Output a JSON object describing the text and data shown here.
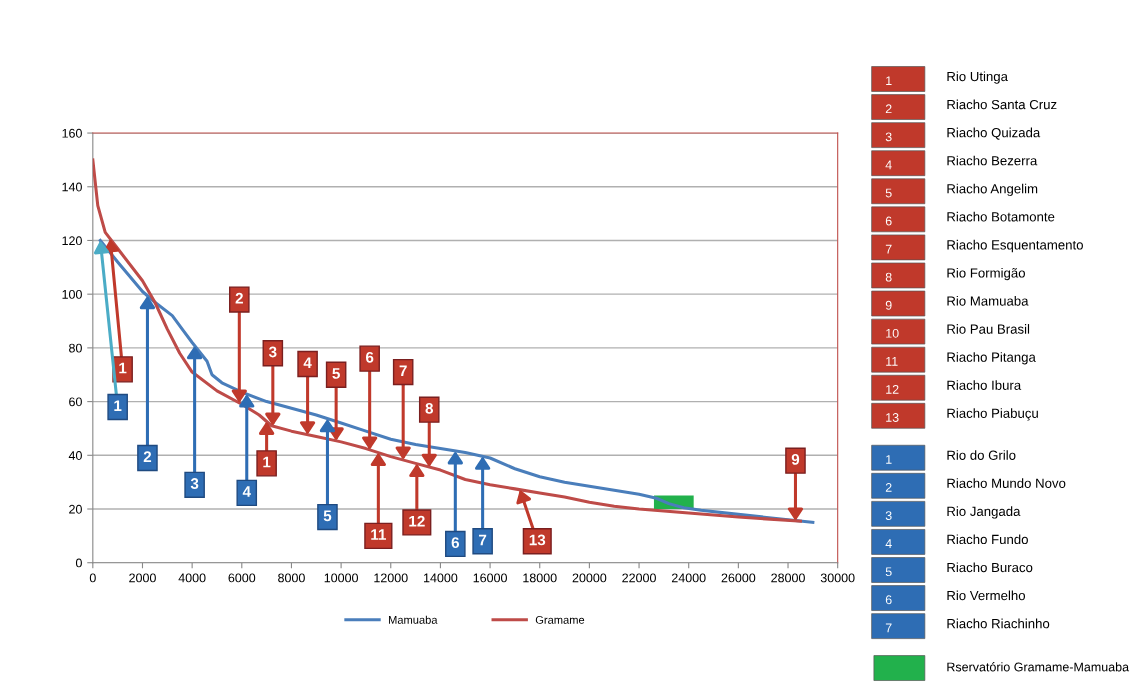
{
  "chart_data": {
    "type": "line",
    "xlim": [
      0,
      30000
    ],
    "ylim": [
      0,
      160
    ],
    "xticks": [
      0,
      2000,
      4000,
      6000,
      8000,
      10000,
      12000,
      14000,
      16000,
      18000,
      20000,
      22000,
      24000,
      26000,
      28000,
      30000
    ],
    "yticks": [
      0,
      20,
      40,
      60,
      80,
      100,
      120,
      140,
      160
    ],
    "grid": "y",
    "legend": "bottom",
    "marker": "none",
    "line_style": "solid",
    "series": [
      {
        "name": "Mamuaba",
        "color": "#4a7ebb",
        "x": [
          300,
          1000,
          2000,
          2500,
          3200,
          3600,
          4000,
          4600,
          4800,
          5200,
          6000,
          7000,
          8000,
          9000,
          10000,
          11000,
          12000,
          13000,
          14000,
          15000,
          16000,
          17000,
          18000,
          19000,
          20000,
          21000,
          22000,
          22700,
          23200,
          23800,
          24500,
          26000,
          28000,
          29000
        ],
        "values": [
          120,
          112,
          101,
          97,
          92,
          87,
          82,
          75,
          70,
          67,
          63.5,
          60,
          57.5,
          55,
          52,
          49,
          46,
          44,
          42.5,
          41,
          39,
          35,
          32,
          30,
          28.5,
          27,
          25.5,
          24,
          22,
          20.5,
          19.5,
          18,
          16,
          15
        ]
      },
      {
        "name": "Gramame",
        "color": "#be4b48",
        "x": [
          0,
          200,
          500,
          1000,
          2000,
          2500,
          3000,
          3500,
          4000,
          5000,
          6000,
          6700,
          7200,
          8000,
          9000,
          10000,
          11000,
          12000,
          13000,
          14000,
          15000,
          16000,
          17000,
          18000,
          19000,
          20000,
          21000,
          22000,
          24000,
          26000,
          28500
        ],
        "values": [
          150,
          133,
          123,
          117,
          105,
          97,
          87,
          78,
          71,
          64,
          59,
          55,
          51,
          49,
          47,
          45,
          42.5,
          39.5,
          37,
          34.5,
          31,
          29,
          27.5,
          26,
          24.5,
          22.5,
          21,
          20,
          18.5,
          17,
          15.5
        ]
      }
    ],
    "annotations": [
      {
        "text": "1",
        "x": 700,
        "y": 120.6
      },
      {
        "text": "2",
        "x": 5900,
        "y": 59.5
      },
      {
        "text": "3",
        "x": 7250,
        "y": 50.9
      },
      {
        "text": "4",
        "x": 8650,
        "y": 47.7
      },
      {
        "text": "5",
        "x": 9800,
        "y": 45.4
      },
      {
        "text": "6",
        "x": 11150,
        "y": 42
      },
      {
        "text": "7",
        "x": 12500,
        "y": 38.3
      },
      {
        "text": "8",
        "x": 13550,
        "y": 35.6
      },
      {
        "text": "9",
        "x": 28300,
        "y": 15.6
      },
      {
        "text": "1",
        "x": 7000,
        "y": 52.6
      },
      {
        "text": "11",
        "x": 11500,
        "y": 41
      },
      {
        "text": "12",
        "x": 13050,
        "y": 36.9
      },
      {
        "text": "13",
        "x": 17200,
        "y": 27.2
      },
      {
        "text": "1",
        "x": 300,
        "y": 120
      },
      {
        "text": "2",
        "x": 2200,
        "y": 99.4
      },
      {
        "text": "3",
        "x": 4100,
        "y": 80.8
      },
      {
        "text": "4",
        "x": 6200,
        "y": 62.8
      },
      {
        "text": "5",
        "x": 9450,
        "y": 53.6
      },
      {
        "text": "6",
        "x": 14600,
        "y": 41.6
      },
      {
        "text": "7",
        "x": 15700,
        "y": 39.6
      },
      "Rservatório Gramame-Mamuaba",
      "1 Rio Utinga",
      "2 Riacho Santa Cruz",
      "3 Riacho Quizada",
      "4 Riacho Bezerra",
      "5 Riacho Angelim",
      "6 Riacho Botamonte",
      "7 Riacho Esquentamento",
      "8 Rio Formigão",
      "9 Rio Mamuaba",
      "10 Rio Pau Brasil",
      "11 Riacho Pitanga",
      "12 Riacho Ibura",
      "13 Riacho Piabuçu",
      "1 Rio do Grilo",
      "2 Riacho Mundo Novo",
      "3 Rio Jangada",
      "4 Riacho Fundo",
      "5 Riacho Buraco",
      "6 Rio Vermelho",
      "7 Riacho Riachinho"
    ]
  }
}
